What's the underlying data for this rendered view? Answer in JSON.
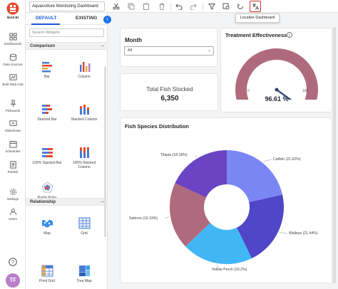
{
  "nav": {
    "brand": "Bold BI",
    "items": [
      {
        "label": "Dashboards",
        "icon": "dashboards-icon"
      },
      {
        "label": "Data Sources",
        "icon": "data-sources-icon"
      },
      {
        "label": "Bold Data Hub",
        "icon": "data-hub-icon"
      },
      {
        "label": "Pinboards",
        "icon": "pin-icon"
      },
      {
        "label": "Slideshows",
        "icon": "slideshow-icon"
      },
      {
        "label": "Schedules",
        "icon": "calendar-icon"
      },
      {
        "label": "Publish",
        "icon": "publish-icon"
      },
      {
        "label": "Settings",
        "icon": "gear-icon"
      },
      {
        "label": "Users",
        "icon": "users-icon"
      }
    ],
    "user_initials": "TF"
  },
  "toolbar": {
    "dashboard_name": "Aquaculture Monitoring Dashboard",
    "tooltip": "Localize Dashboard"
  },
  "widget_panel": {
    "tab_default": "DEFAULT",
    "tab_existing": "EXISTING",
    "search_placeholder": "Search Widgets",
    "sections": [
      {
        "title": "Comparison",
        "widgets": [
          "Bar",
          "Column",
          "Stacked Bar",
          "Stacked Column",
          "100% Stacked Bar",
          "100% Stacked Column",
          "Radar Polar"
        ]
      },
      {
        "title": "Relationship",
        "widgets": [
          "Map",
          "Grid",
          "Pivot Grid",
          "Tree Map"
        ]
      }
    ]
  },
  "canvas": {
    "month": {
      "title": "Month",
      "selected": "All"
    },
    "kpi": {
      "label": "Total Fish Stocked",
      "value": "6,350"
    },
    "gauge": {
      "title": "Treatment Effectiveness",
      "min": "0",
      "max": "100",
      "value_text": "96.61 %",
      "value": 96.61,
      "color": "#b06a7e"
    }
  },
  "chart_data": {
    "type": "pie",
    "title": "Fish Species Distribution",
    "donut": true,
    "slices": [
      {
        "name": "Catfish",
        "value": 21.62,
        "label": "Catfish (21.62%)",
        "color": "#7b86f5"
      },
      {
        "name": "Walleye",
        "value": 21.44,
        "label": "Walleye (21.44%)",
        "color": "#5046c8"
      },
      {
        "name": "Yellow Perch",
        "value": 20.2,
        "label": "Yellow Perch (20.2%)",
        "color": "#41b6f5"
      },
      {
        "name": "Salmon",
        "value": 19.19,
        "label": "Salmon (19.19%)",
        "color": "#b06a7e"
      },
      {
        "name": "Tilapia",
        "value": 18.18,
        "label": "Tilapia (18.18%)",
        "color": "#6a44c2"
      }
    ]
  }
}
